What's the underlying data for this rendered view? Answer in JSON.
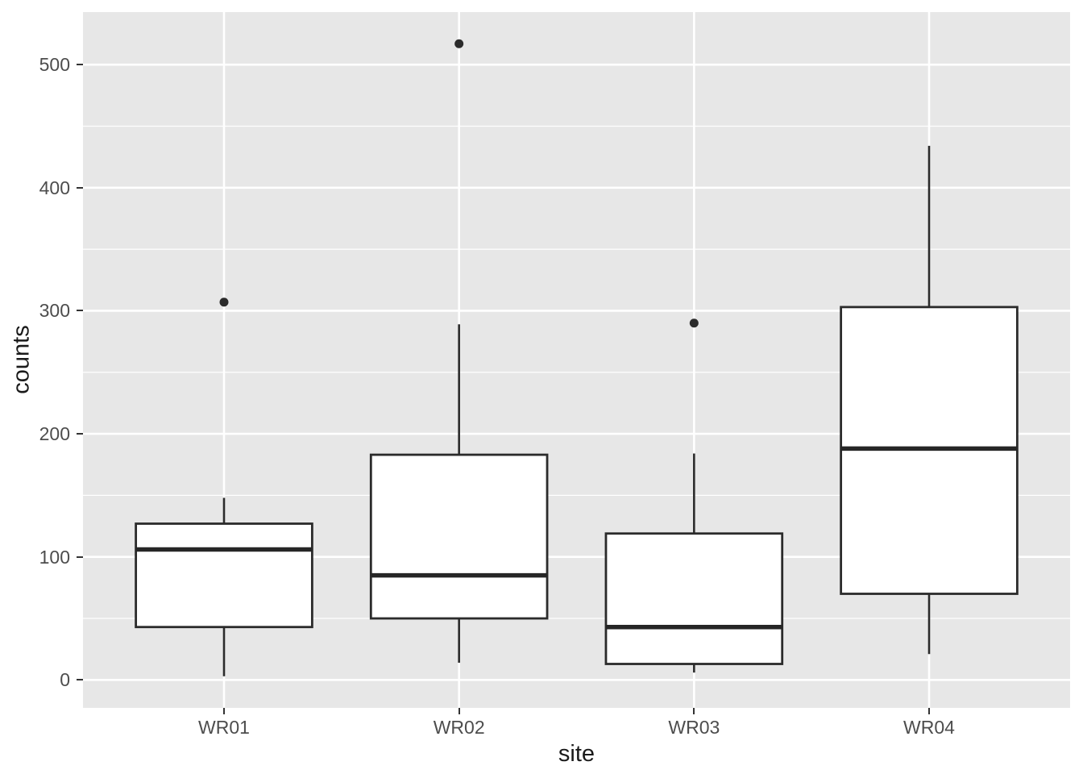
{
  "figure": {
    "background": "#FFFFFF",
    "panel_background": "#E7E7E7",
    "grid_color": "#FFFFFF",
    "box_stroke": "#2B2B2B",
    "box_fill": "#FFFFFF",
    "median_color": "#262626",
    "outlier_color": "#2B2B2B",
    "axis_text_color": "#4D4D4D",
    "axis_title_color": "#1A1A1A"
  },
  "chart_data": {
    "type": "boxplot",
    "title": "",
    "xlabel": "site",
    "ylabel": "counts",
    "categories": [
      "WR01",
      "WR02",
      "WR03",
      "WR04"
    ],
    "series": [
      {
        "name": "WR01",
        "whisker_low": 3,
        "q1": 43,
        "median": 106,
        "q3": 127,
        "whisker_high": 148,
        "outliers": [
          307
        ]
      },
      {
        "name": "WR02",
        "whisker_low": 14,
        "q1": 50,
        "median": 85,
        "q3": 183,
        "whisker_high": 289,
        "outliers": [
          517
        ]
      },
      {
        "name": "WR03",
        "whisker_low": 6,
        "q1": 13,
        "median": 43,
        "q3": 119,
        "whisker_high": 184,
        "outliers": [
          290
        ]
      },
      {
        "name": "WR04",
        "whisker_low": 21,
        "q1": 70,
        "median": 188,
        "q3": 303,
        "whisker_high": 434,
        "outliers": []
      }
    ],
    "y_axis": {
      "label": "counts",
      "major_ticks": [
        0,
        100,
        200,
        300,
        400,
        500
      ],
      "minor_ticks": [
        50,
        150,
        250,
        350,
        450
      ],
      "range": [
        -22.7,
        542.7
      ]
    },
    "x_axis": {
      "label": "site",
      "ticks": [
        "WR01",
        "WR02",
        "WR03",
        "WR04"
      ]
    },
    "legend": "none",
    "grid": "horizontal major+minor, vertical major at category centers"
  }
}
